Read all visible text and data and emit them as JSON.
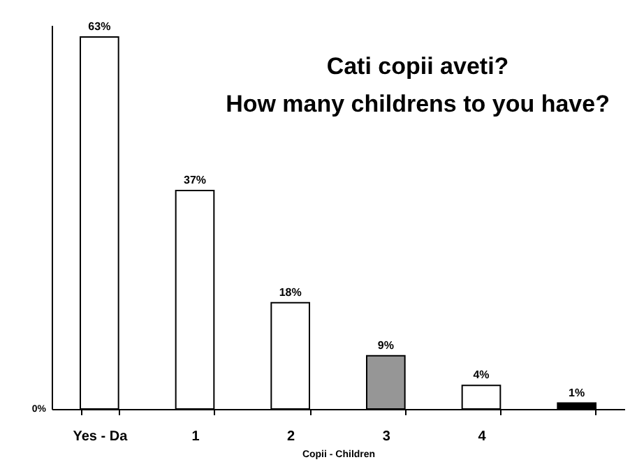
{
  "chart_data": {
    "type": "bar",
    "title": "Cati copii aveti?\nHow many childrens to you have?",
    "xlabel": "Copii - Children",
    "categories": [
      "Yes - Da",
      "1",
      "2",
      "3",
      "4",
      null
    ],
    "values": [
      63,
      37,
      18,
      9,
      4,
      1
    ],
    "colors": [
      "#ffffff",
      "#ffffff",
      "#ffffff",
      "#969696",
      "#ffffff",
      "#000000"
    ],
    "value_labels": [
      "63%",
      "37%",
      "18%",
      "9%",
      "4%",
      "1%"
    ],
    "annotations": [
      "0%"
    ],
    "grid": false
  }
}
